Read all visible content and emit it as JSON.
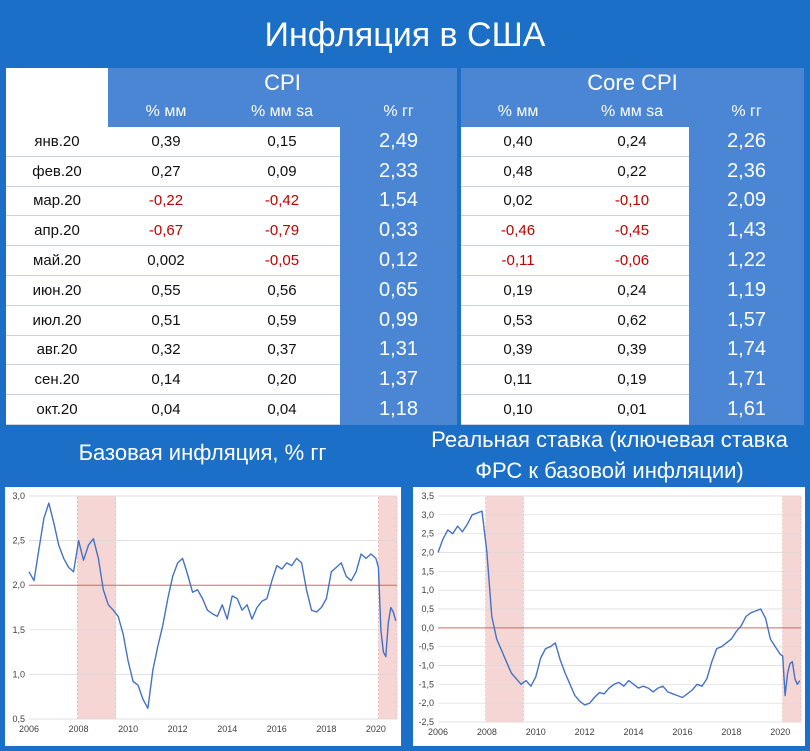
{
  "title": "Инфляция в США",
  "table": {
    "groups": [
      "CPI",
      "Core CPI"
    ],
    "columns": [
      "% мм",
      "% мм sa",
      "% гг"
    ],
    "rows": [
      {
        "month": "янв.20",
        "cpi": [
          "0,39",
          "0,15",
          "2,49"
        ],
        "core": [
          "0,40",
          "0,24",
          "2,26"
        ]
      },
      {
        "month": "фев.20",
        "cpi": [
          "0,27",
          "0,09",
          "2,33"
        ],
        "core": [
          "0,48",
          "0,22",
          "2,36"
        ]
      },
      {
        "month": "мар.20",
        "cpi": [
          "-0,22",
          "-0,42",
          "1,54"
        ],
        "core": [
          "0,02",
          "-0,10",
          "2,09"
        ]
      },
      {
        "month": "апр.20",
        "cpi": [
          "-0,67",
          "-0,79",
          "0,33"
        ],
        "core": [
          "-0,46",
          "-0,45",
          "1,43"
        ]
      },
      {
        "month": "май.20",
        "cpi": [
          "0,002",
          "-0,05",
          "0,12"
        ],
        "core": [
          "-0,11",
          "-0,06",
          "1,22"
        ]
      },
      {
        "month": "июн.20",
        "cpi": [
          "0,55",
          "0,56",
          "0,65"
        ],
        "core": [
          "0,19",
          "0,24",
          "1,19"
        ]
      },
      {
        "month": "июл.20",
        "cpi": [
          "0,51",
          "0,59",
          "0,99"
        ],
        "core": [
          "0,53",
          "0,62",
          "1,57"
        ]
      },
      {
        "month": "авг.20",
        "cpi": [
          "0,32",
          "0,37",
          "1,31"
        ],
        "core": [
          "0,39",
          "0,39",
          "1,74"
        ]
      },
      {
        "month": "сен.20",
        "cpi": [
          "0,14",
          "0,20",
          "1,37"
        ],
        "core": [
          "0,11",
          "0,19",
          "1,71"
        ]
      },
      {
        "month": "окт.20",
        "cpi": [
          "0,04",
          "0,04",
          "1,18"
        ],
        "core": [
          "0,10",
          "0,01",
          "1,61"
        ]
      }
    ]
  },
  "colors": {
    "line": "#4472c4",
    "ref": "#e06060",
    "shade": "#f6d5d5",
    "negative": "#c00000",
    "accent": "#4a86d3",
    "background": "#1b6fc6"
  },
  "chart_data": [
    {
      "type": "line",
      "title": "Базовая инфляция, % гг",
      "xlabel": "",
      "ylabel": "",
      "xlim": [
        2006,
        2020.85
      ],
      "ylim": [
        0.5,
        3.0
      ],
      "y_ticks": [
        "0,5",
        "1,0",
        "1,5",
        "2,0",
        "2,5",
        "3,0"
      ],
      "y_tick_values": [
        0.5,
        1.0,
        1.5,
        2.0,
        2.5,
        3.0
      ],
      "x_ticks": [
        "2006",
        "2008",
        "2010",
        "2012",
        "2014",
        "2016",
        "2018",
        "2020"
      ],
      "reference_line": 2.0,
      "recession_shading": [
        [
          2007.95,
          2009.5
        ],
        [
          2020.1,
          2020.85
        ]
      ],
      "grid": true,
      "series": [
        {
          "x": [
            2006.0,
            2006.2,
            2006.4,
            2006.6,
            2006.8,
            2007.0,
            2007.2,
            2007.4,
            2007.6,
            2007.8,
            2008.0,
            2008.2,
            2008.4,
            2008.6,
            2008.8,
            2009.0,
            2009.2,
            2009.4,
            2009.6,
            2009.8,
            2010.0,
            2010.2,
            2010.4,
            2010.6,
            2010.8,
            2011.0,
            2011.2,
            2011.4,
            2011.6,
            2011.8,
            2012.0,
            2012.2,
            2012.4,
            2012.6,
            2012.8,
            2013.0,
            2013.2,
            2013.4,
            2013.6,
            2013.8,
            2014.0,
            2014.2,
            2014.4,
            2014.6,
            2014.8,
            2015.0,
            2015.2,
            2015.4,
            2015.6,
            2015.8,
            2016.0,
            2016.2,
            2016.4,
            2016.6,
            2016.8,
            2017.0,
            2017.2,
            2017.4,
            2017.6,
            2017.8,
            2018.0,
            2018.2,
            2018.4,
            2018.6,
            2018.8,
            2019.0,
            2019.2,
            2019.4,
            2019.6,
            2019.8,
            2020.0,
            2020.1,
            2020.2,
            2020.3,
            2020.4,
            2020.5,
            2020.6,
            2020.7,
            2020.8
          ],
          "y": [
            2.15,
            2.05,
            2.4,
            2.75,
            2.92,
            2.7,
            2.45,
            2.3,
            2.2,
            2.15,
            2.5,
            2.28,
            2.45,
            2.52,
            2.3,
            1.95,
            1.78,
            1.72,
            1.65,
            1.45,
            1.15,
            0.92,
            0.88,
            0.72,
            0.62,
            1.05,
            1.32,
            1.55,
            1.85,
            2.1,
            2.25,
            2.3,
            2.12,
            1.92,
            1.95,
            1.85,
            1.72,
            1.68,
            1.65,
            1.78,
            1.62,
            1.88,
            1.85,
            1.72,
            1.78,
            1.62,
            1.75,
            1.82,
            1.85,
            2.05,
            2.22,
            2.18,
            2.25,
            2.22,
            2.3,
            2.25,
            1.95,
            1.72,
            1.7,
            1.75,
            1.85,
            2.15,
            2.2,
            2.25,
            2.1,
            2.05,
            2.15,
            2.35,
            2.3,
            2.35,
            2.3,
            2.2,
            1.5,
            1.25,
            1.2,
            1.58,
            1.75,
            1.7,
            1.6
          ]
        }
      ]
    },
    {
      "type": "line",
      "title": "Реальная ставка (ключевая ставка ФРС к базовой инфляции)",
      "xlabel": "",
      "ylabel": "",
      "xlim": [
        2006,
        2020.85
      ],
      "ylim": [
        -2.5,
        3.5
      ],
      "y_ticks": [
        "-2,5",
        "-2,0",
        "-1,5",
        "-1,0",
        "-0,5",
        "0,0",
        "0,5",
        "1,0",
        "1,5",
        "2,0",
        "2,5",
        "3,0",
        "3,5"
      ],
      "y_tick_values": [
        -2.5,
        -2.0,
        -1.5,
        -1.0,
        -0.5,
        0.0,
        0.5,
        1.0,
        1.5,
        2.0,
        2.5,
        3.0,
        3.5
      ],
      "x_ticks": [
        "2006",
        "2008",
        "2010",
        "2012",
        "2014",
        "2016",
        "2018",
        "2020"
      ],
      "reference_line": 0.0,
      "recession_shading": [
        [
          2007.95,
          2009.5
        ],
        [
          2020.1,
          2020.85
        ]
      ],
      "grid": true,
      "series": [
        {
          "x": [
            2006.0,
            2006.2,
            2006.4,
            2006.6,
            2006.8,
            2007.0,
            2007.2,
            2007.4,
            2007.6,
            2007.8,
            2008.0,
            2008.2,
            2008.4,
            2008.6,
            2008.8,
            2009.0,
            2009.2,
            2009.4,
            2009.6,
            2009.8,
            2010.0,
            2010.2,
            2010.4,
            2010.6,
            2010.8,
            2011.0,
            2011.2,
            2011.4,
            2011.6,
            2011.8,
            2012.0,
            2012.2,
            2012.4,
            2012.6,
            2012.8,
            2013.0,
            2013.2,
            2013.4,
            2013.6,
            2013.8,
            2014.0,
            2014.2,
            2014.4,
            2014.6,
            2014.8,
            2015.0,
            2015.2,
            2015.4,
            2015.6,
            2015.8,
            2016.0,
            2016.2,
            2016.4,
            2016.6,
            2016.8,
            2017.0,
            2017.2,
            2017.4,
            2017.6,
            2017.8,
            2018.0,
            2018.2,
            2018.4,
            2018.6,
            2018.8,
            2019.0,
            2019.2,
            2019.4,
            2019.6,
            2019.8,
            2020.0,
            2020.1,
            2020.2,
            2020.3,
            2020.4,
            2020.5,
            2020.6,
            2020.7,
            2020.8
          ],
          "y": [
            2.0,
            2.35,
            2.6,
            2.5,
            2.7,
            2.55,
            2.75,
            3.0,
            3.05,
            3.1,
            2.0,
            0.3,
            -0.3,
            -0.6,
            -0.9,
            -1.2,
            -1.35,
            -1.5,
            -1.4,
            -1.55,
            -1.3,
            -0.8,
            -0.55,
            -0.5,
            -0.4,
            -0.85,
            -1.2,
            -1.5,
            -1.8,
            -1.95,
            -2.05,
            -2.0,
            -1.85,
            -1.72,
            -1.75,
            -1.6,
            -1.5,
            -1.45,
            -1.55,
            -1.4,
            -1.5,
            -1.6,
            -1.55,
            -1.6,
            -1.7,
            -1.6,
            -1.55,
            -1.7,
            -1.75,
            -1.8,
            -1.85,
            -1.75,
            -1.65,
            -1.5,
            -1.55,
            -1.35,
            -0.9,
            -0.55,
            -0.5,
            -0.4,
            -0.3,
            -0.1,
            0.05,
            0.3,
            0.4,
            0.45,
            0.5,
            0.25,
            -0.3,
            -0.5,
            -0.7,
            -0.75,
            -1.8,
            -1.2,
            -0.95,
            -0.9,
            -1.35,
            -1.5,
            -1.4
          ]
        }
      ]
    }
  ]
}
